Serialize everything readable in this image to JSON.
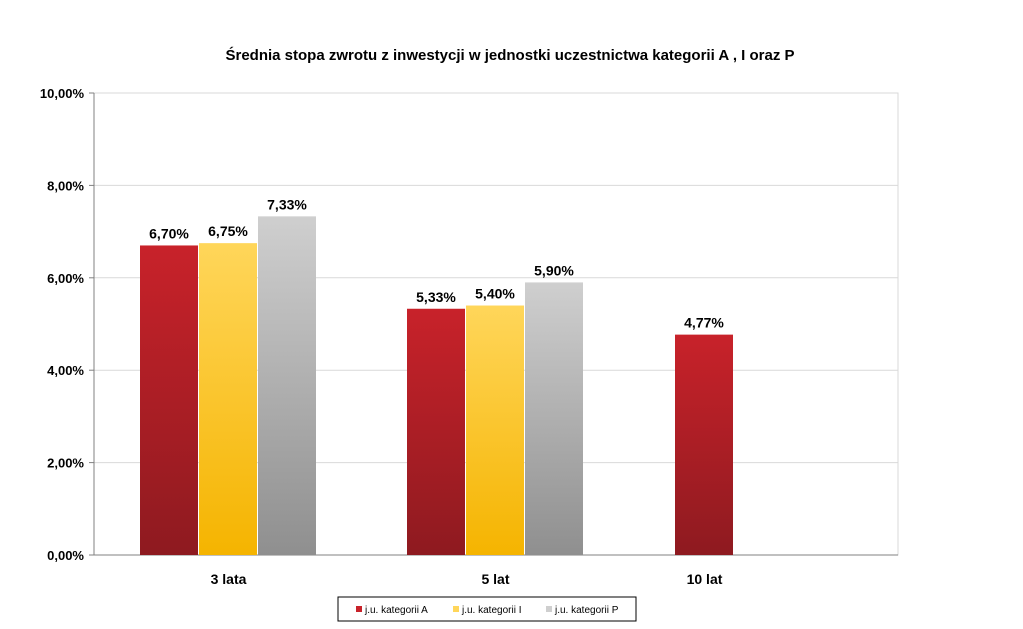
{
  "chart_data": {
    "type": "bar",
    "title": "Średnia stopa zwrotu z inwestycji w jednostki uczestnictwa kategorii A , I oraz P",
    "xlabel": "",
    "ylabel": "",
    "categories": [
      "3 lata",
      "5 lat",
      "10 lat"
    ],
    "series": [
      {
        "name": "j.u. kategorii A",
        "values": [
          6.7,
          5.33,
          4.77
        ],
        "labels": [
          "6,70%",
          "5,33%",
          "4,77%"
        ],
        "color": "#c8222a",
        "colorDark": "#8e1a20"
      },
      {
        "name": "j.u. kategorii I",
        "values": [
          6.75,
          5.4,
          null
        ],
        "labels": [
          "6,75%",
          "5,40%",
          ""
        ],
        "color": "#ffd65a",
        "colorDark": "#f5b400"
      },
      {
        "name": "j.u. kategorii P",
        "values": [
          7.33,
          5.9,
          null
        ],
        "labels": [
          "7,33%",
          "5,90%",
          ""
        ],
        "color": "#cfcfcf",
        "colorDark": "#8f8f8f"
      }
    ],
    "ylim": [
      0,
      10
    ],
    "yticks": [
      0,
      2,
      4,
      6,
      8,
      10
    ],
    "ytick_labels": [
      "0,00%",
      "2,00%",
      "4,00%",
      "6,00%",
      "8,00%",
      "10,00%"
    ],
    "grid": true,
    "legend": "bottom-center"
  }
}
